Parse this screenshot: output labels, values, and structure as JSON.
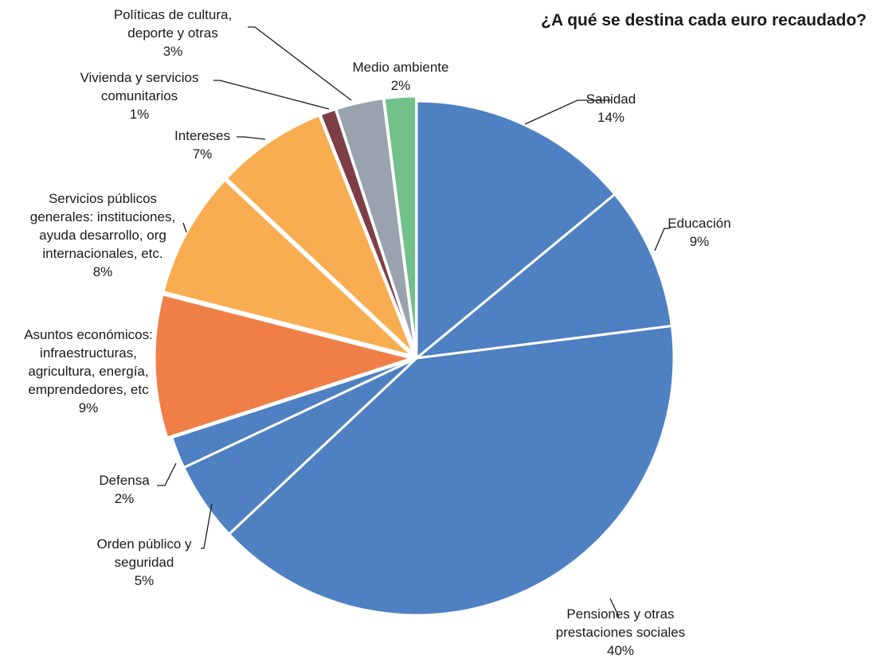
{
  "chart_data": {
    "type": "pie",
    "title": "¿A qué se destina cada euro recaudado?",
    "start_angle_deg": 0,
    "direction": "clockwise",
    "slices": [
      {
        "label_lines": [
          "Sanidad"
        ],
        "value_label": "14%",
        "value": 14,
        "color": "#4f81c2",
        "exploded": false
      },
      {
        "label_lines": [
          "Educación"
        ],
        "value_label": "9%",
        "value": 9,
        "color": "#4f81c2",
        "exploded": false
      },
      {
        "label_lines": [
          "Pensiones y otras",
          "prestaciones sociales"
        ],
        "value_label": "40%",
        "value": 40,
        "color": "#4f81c2",
        "exploded": false
      },
      {
        "label_lines": [
          "Orden público y",
          "seguridad"
        ],
        "value_label": "5%",
        "value": 5,
        "color": "#4f81c2",
        "exploded": false
      },
      {
        "label_lines": [
          "Defensa"
        ],
        "value_label": "2%",
        "value": 2,
        "color": "#4f81c2",
        "exploded": false
      },
      {
        "label_lines": [
          "Asuntos económicos:",
          "infraestructuras,",
          "agricultura, energía,",
          "emprendedores, etc"
        ],
        "value_label": "9%",
        "value": 9,
        "color": "#f07f47",
        "exploded": true
      },
      {
        "label_lines": [
          "Servicios públicos",
          "generales: instituciones,",
          "ayuda desarrollo, org",
          "internacionales, etc."
        ],
        "value_label": "8%",
        "value": 8,
        "color": "#f9ad51",
        "exploded": true
      },
      {
        "label_lines": [
          "Intereses"
        ],
        "value_label": "7%",
        "value": 7,
        "color": "#f9ad51",
        "exploded": true
      },
      {
        "label_lines": [
          "Vivienda y  servicios",
          "comunitarios"
        ],
        "value_label": "1%",
        "value": 1,
        "color": "#7d3f45",
        "exploded": true
      },
      {
        "label_lines": [
          "Políticas de cultura,",
          "deporte y otras"
        ],
        "value_label": "3%",
        "value": 3,
        "color": "#98a3ad",
        "exploded": true
      },
      {
        "label_lines": [
          "Medio ambiente"
        ],
        "value_label": "2%",
        "value": 2,
        "color": "#72c08a",
        "exploded": true
      }
    ]
  }
}
